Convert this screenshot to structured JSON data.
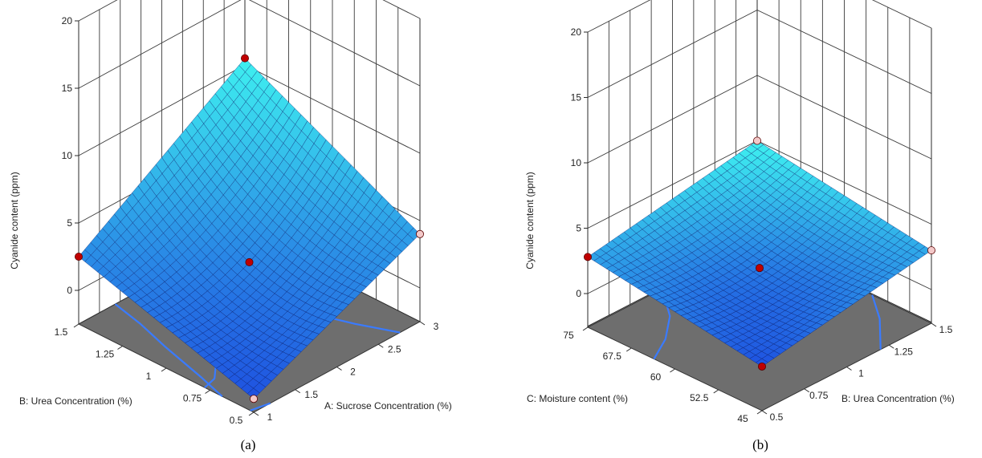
{
  "chart_data": [
    {
      "type": "surface",
      "panel_label": "(a)",
      "zlabel": "Cyanide content (ppm)",
      "zlim": [
        0,
        20
      ],
      "z_ticks": [
        "0",
        "5",
        "10",
        "15",
        "20"
      ],
      "x_axis": {
        "label": "A: Sucrose Concentration  (%)",
        "range": [
          1,
          3
        ],
        "ticks": [
          "1",
          "1.5",
          "2",
          "2.5",
          "3"
        ]
      },
      "y_axis": {
        "label": "B: Urea Concentration    (%)",
        "range": [
          0.5,
          1.5
        ],
        "ticks": [
          "0.5",
          "0.75",
          "1",
          "1.25",
          "1.5"
        ]
      },
      "corner_values": [
        {
          "x": 1,
          "y": 0.5,
          "z": -1.5
        },
        {
          "x": 3,
          "y": 0.5,
          "z": 4.0
        },
        {
          "x": 3,
          "y": 1.5,
          "z": 10.5
        },
        {
          "x": 1,
          "y": 1.5,
          "z": 2.5
        }
      ],
      "center_value": {
        "x": 2,
        "y": 1,
        "z": 2.0
      },
      "design_points": [
        {
          "x": 1,
          "y": 1.5,
          "z": 2.5,
          "color": "#c00000"
        },
        {
          "x": 3,
          "y": 1.5,
          "z": 10.5,
          "color": "#c00000"
        },
        {
          "x": 2,
          "y": 1,
          "z": 2.0,
          "color": "#c00000"
        },
        {
          "x": 3,
          "y": 0.5,
          "z": 4.0,
          "color": "#f3c9c9"
        },
        {
          "x": 1,
          "y": 0.5,
          "z": -1.5,
          "color": "#f3c9c9"
        }
      ]
    },
    {
      "type": "surface",
      "panel_label": "(b)",
      "zlabel": "Cyanide content (ppm)",
      "zlim": [
        0,
        20
      ],
      "z_ticks": [
        "0",
        "5",
        "10",
        "15",
        "20"
      ],
      "x_axis": {
        "label": "B: Urea Concentration    (%)",
        "range": [
          0.5,
          1.5
        ],
        "ticks": [
          "0.5",
          "0.75",
          "1",
          "1.25",
          "1.5"
        ]
      },
      "y_axis": {
        "label": "C: Moisture content  (%)",
        "range": [
          45,
          75
        ],
        "ticks": [
          "45",
          "52.5",
          "60",
          "67.5",
          "75"
        ]
      },
      "corner_values": [
        {
          "x": 0.5,
          "y": 45,
          "z": 0.8
        },
        {
          "x": 1.5,
          "y": 45,
          "z": 3.0
        },
        {
          "x": 1.5,
          "y": 75,
          "z": 5.0
        },
        {
          "x": 0.5,
          "y": 75,
          "z": 2.8
        }
      ],
      "center_value": {
        "x": 1,
        "y": 60,
        "z": 1.8
      },
      "design_points": [
        {
          "x": 0.5,
          "y": 75,
          "z": 2.8,
          "color": "#c00000"
        },
        {
          "x": 1,
          "y": 60,
          "z": 1.8,
          "color": "#c00000"
        },
        {
          "x": 0.5,
          "y": 45,
          "z": 0.8,
          "color": "#c00000"
        },
        {
          "x": 1.5,
          "y": 75,
          "z": 5.0,
          "color": "#f3c9c9"
        },
        {
          "x": 1.5,
          "y": 45,
          "z": 3.0,
          "color": "#f3c9c9"
        }
      ]
    }
  ],
  "colors": {
    "floor": "#6e6e6e",
    "surface_low": "#1e4fe0",
    "surface_high": "#3ef0f0",
    "contour": "#3a7bff"
  }
}
